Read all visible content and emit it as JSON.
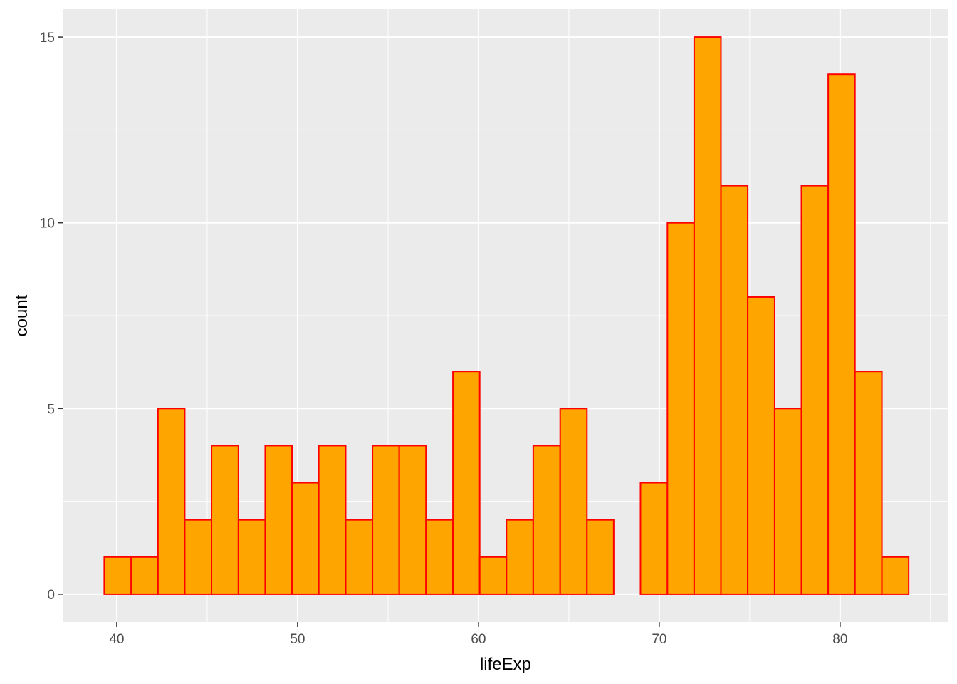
{
  "chart_data": {
    "type": "bar",
    "subtype": "histogram",
    "xlabel": "lifeExp",
    "ylabel": "count",
    "xlim": [
      37.05,
      85.95
    ],
    "ylim": [
      -0.75,
      15.75
    ],
    "x_ticks": [
      40,
      50,
      60,
      70,
      80
    ],
    "y_ticks": [
      0,
      5,
      10,
      15
    ],
    "grid": true,
    "colors": {
      "bar_fill": "#FFA500",
      "bar_stroke": "#FF0000",
      "panel_background": "#EBEBEB",
      "grid": "#FFFFFF"
    },
    "bins": [
      {
        "x0": 39.31,
        "x1": 40.8,
        "count": 1
      },
      {
        "x0": 40.8,
        "x1": 42.28,
        "count": 1
      },
      {
        "x0": 42.28,
        "x1": 43.76,
        "count": 5
      },
      {
        "x0": 43.76,
        "x1": 45.24,
        "count": 2
      },
      {
        "x0": 45.24,
        "x1": 46.73,
        "count": 4
      },
      {
        "x0": 46.73,
        "x1": 48.21,
        "count": 2
      },
      {
        "x0": 48.21,
        "x1": 49.69,
        "count": 4
      },
      {
        "x0": 49.69,
        "x1": 51.17,
        "count": 3
      },
      {
        "x0": 51.17,
        "x1": 52.66,
        "count": 4
      },
      {
        "x0": 52.66,
        "x1": 54.14,
        "count": 2
      },
      {
        "x0": 54.14,
        "x1": 55.62,
        "count": 4
      },
      {
        "x0": 55.62,
        "x1": 57.1,
        "count": 4
      },
      {
        "x0": 57.1,
        "x1": 58.59,
        "count": 2
      },
      {
        "x0": 58.59,
        "x1": 60.07,
        "count": 6
      },
      {
        "x0": 60.07,
        "x1": 61.55,
        "count": 1
      },
      {
        "x0": 61.55,
        "x1": 63.03,
        "count": 2
      },
      {
        "x0": 63.03,
        "x1": 64.52,
        "count": 4
      },
      {
        "x0": 64.52,
        "x1": 66.0,
        "count": 5
      },
      {
        "x0": 66.0,
        "x1": 67.48,
        "count": 2
      },
      {
        "x0": 67.48,
        "x1": 68.96,
        "count": 0
      },
      {
        "x0": 68.96,
        "x1": 70.45,
        "count": 3
      },
      {
        "x0": 70.45,
        "x1": 71.93,
        "count": 10
      },
      {
        "x0": 71.93,
        "x1": 73.41,
        "count": 15
      },
      {
        "x0": 73.41,
        "x1": 74.89,
        "count": 11
      },
      {
        "x0": 74.89,
        "x1": 76.38,
        "count": 8
      },
      {
        "x0": 76.38,
        "x1": 77.86,
        "count": 5
      },
      {
        "x0": 77.86,
        "x1": 79.34,
        "count": 11
      },
      {
        "x0": 79.34,
        "x1": 80.82,
        "count": 14
      },
      {
        "x0": 80.82,
        "x1": 82.31,
        "count": 6
      },
      {
        "x0": 82.31,
        "x1": 83.79,
        "count": 1
      }
    ]
  }
}
